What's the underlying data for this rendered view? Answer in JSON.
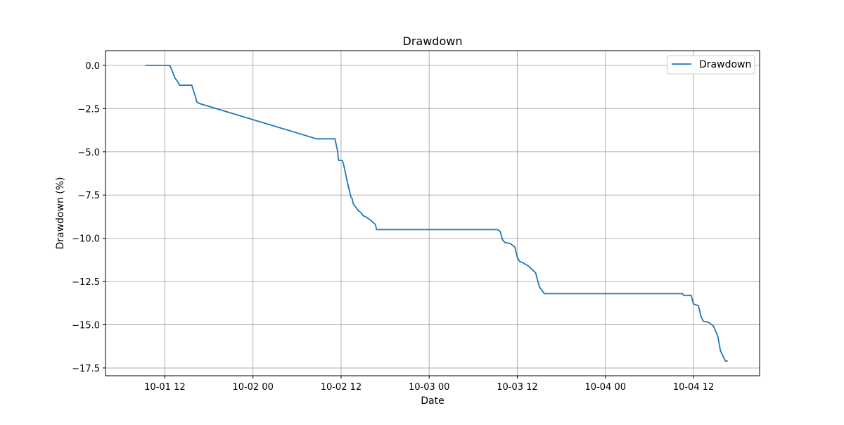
{
  "chart_data": {
    "type": "line",
    "title": "Drawdown",
    "xlabel": "Date",
    "ylabel": "Drawdown (%)",
    "grid": true,
    "legend": {
      "position": "top-right",
      "entries": [
        "Drawdown"
      ]
    },
    "xlim": [
      "2024-10-01 03:55",
      "2024-10-04 21:00"
    ],
    "ylim": [
      -17.95,
      0.85
    ],
    "x_ticks": [
      {
        "value": "2024-10-01 12:00",
        "label": "10-01 12"
      },
      {
        "value": "2024-10-02 00:00",
        "label": "10-02 00"
      },
      {
        "value": "2024-10-02 12:00",
        "label": "10-02 12"
      },
      {
        "value": "2024-10-03 00:00",
        "label": "10-03 00"
      },
      {
        "value": "2024-10-03 12:00",
        "label": "10-03 12"
      },
      {
        "value": "2024-10-04 00:00",
        "label": "10-04 00"
      },
      {
        "value": "2024-10-04 12:00",
        "label": "10-04 12"
      }
    ],
    "y_ticks": [
      {
        "value": 0,
        "label": "0.0"
      },
      {
        "value": -2.5,
        "label": "−2.5"
      },
      {
        "value": -5,
        "label": "−5.0"
      },
      {
        "value": -7.5,
        "label": "−7.5"
      },
      {
        "value": -10,
        "label": "−10.0"
      },
      {
        "value": -12.5,
        "label": "−12.5"
      },
      {
        "value": -15,
        "label": "−15.0"
      },
      {
        "value": -17.5,
        "label": "−17.5"
      }
    ],
    "series": [
      {
        "name": "Drawdown",
        "color": "#1f77b4",
        "x": [
          "2024-10-01 09:20",
          "2024-10-01 12:40",
          "2024-10-01 13:00",
          "2024-10-01 13:20",
          "2024-10-01 13:40",
          "2024-10-01 14:00",
          "2024-10-01 14:20",
          "2024-10-01 15:40",
          "2024-10-01 16:00",
          "2024-10-01 16:10",
          "2024-10-01 16:20",
          "2024-10-01 16:40",
          "2024-10-02 08:40",
          "2024-10-02 11:10",
          "2024-10-02 11:30",
          "2024-10-02 11:40",
          "2024-10-02 12:10",
          "2024-10-02 12:20",
          "2024-10-02 12:50",
          "2024-10-02 13:20",
          "2024-10-02 13:30",
          "2024-10-02 13:40",
          "2024-10-02 14:00",
          "2024-10-02 14:20",
          "2024-10-02 14:40",
          "2024-10-02 15:00",
          "2024-10-02 15:20",
          "2024-10-02 16:00",
          "2024-10-02 16:40",
          "2024-10-02 16:50",
          "2024-10-03 09:20",
          "2024-10-03 09:40",
          "2024-10-03 10:00",
          "2024-10-03 10:20",
          "2024-10-03 11:00",
          "2024-10-03 11:40",
          "2024-10-03 12:00",
          "2024-10-03 12:20",
          "2024-10-03 12:40",
          "2024-10-03 13:30",
          "2024-10-03 14:30",
          "2024-10-03 15:00",
          "2024-10-03 15:40",
          "2024-10-03 16:00",
          "2024-10-03 16:20",
          "2024-10-04 10:30",
          "2024-10-04 10:40",
          "2024-10-04 11:40",
          "2024-10-04 12:00",
          "2024-10-04 12:40",
          "2024-10-04 13:00",
          "2024-10-04 13:20",
          "2024-10-04 14:00",
          "2024-10-04 14:40",
          "2024-10-04 15:00",
          "2024-10-04 15:20",
          "2024-10-04 15:40",
          "2024-10-04 16:20",
          "2024-10-04 16:40"
        ],
        "y": [
          0,
          0,
          -0.3,
          -0.7,
          -0.9,
          -1.15,
          -1.15,
          -1.15,
          -1.6,
          -1.8,
          -2.1,
          -2.2,
          -4.25,
          -4.25,
          -4.9,
          -5.5,
          -5.5,
          -5.7,
          -6.7,
          -7.6,
          -7.7,
          -8.0,
          -8.2,
          -8.4,
          -8.5,
          -8.7,
          -8.75,
          -8.95,
          -9.2,
          -9.5,
          -9.5,
          -9.6,
          -10.1,
          -10.25,
          -10.3,
          -10.5,
          -11.1,
          -11.35,
          -11.4,
          -11.6,
          -12.0,
          -12.8,
          -13.2,
          -13.2,
          -13.2,
          -13.2,
          -13.3,
          -13.3,
          -13.8,
          -13.9,
          -14.5,
          -14.8,
          -14.85,
          -15.05,
          -15.35,
          -15.7,
          -16.5,
          -17.1,
          -17.1
        ]
      }
    ]
  }
}
